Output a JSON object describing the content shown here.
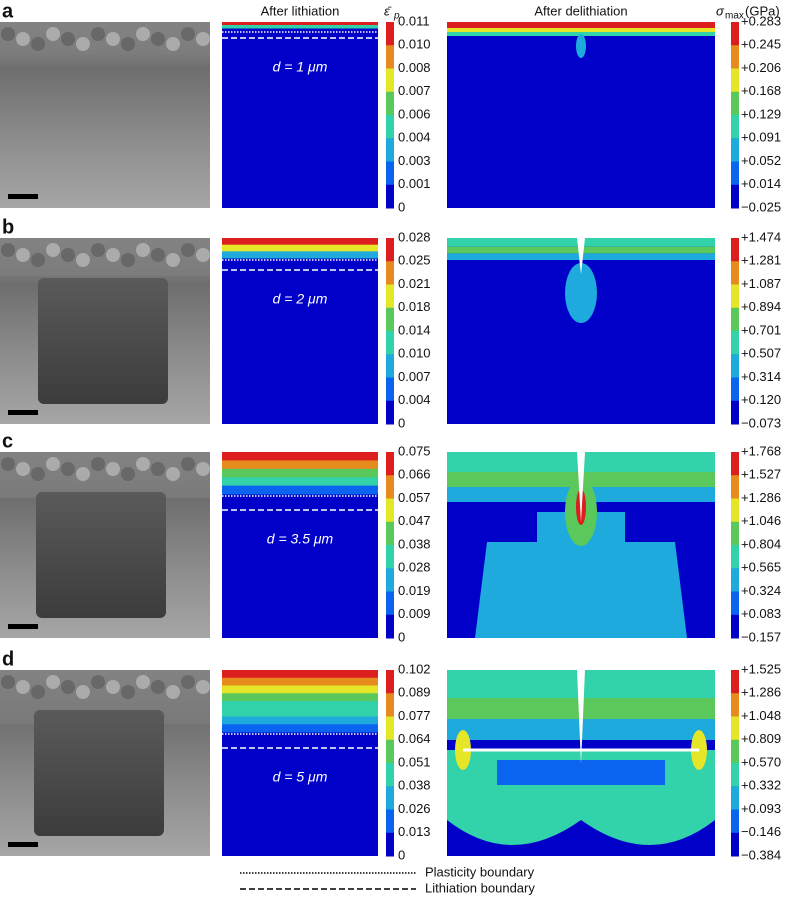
{
  "headers": {
    "lithiation": "After lithiation",
    "strain_symbol": "ε̄",
    "strain_subscript": "p",
    "delithiation": "After delithiation",
    "stress_symbol": "σ",
    "stress_subscript": "max",
    "stress_unit": "(GPa)"
  },
  "panels": [
    {
      "label": "a",
      "depth": "d = 1 μm",
      "strain_ticks": [
        "0.011",
        "0.010",
        "0.008",
        "0.007",
        "0.006",
        "0.004",
        "0.003",
        "0.001",
        "0"
      ],
      "stress_ticks": [
        "+0.283",
        "+0.245",
        "+0.206",
        "+0.168",
        "+0.129",
        "+0.091",
        "+0.052",
        "+0.014",
        "−0.025"
      ]
    },
    {
      "label": "b",
      "depth": "d = 2 μm",
      "strain_ticks": [
        "0.028",
        "0.025",
        "0.021",
        "0.018",
        "0.014",
        "0.010",
        "0.007",
        "0.004",
        "0"
      ],
      "stress_ticks": [
        "+1.474",
        "+1.281",
        "+1.087",
        "+0.894",
        "+0.701",
        "+0.507",
        "+0.314",
        "+0.120",
        "−0.073"
      ]
    },
    {
      "label": "c",
      "depth": "d = 3.5 μm",
      "strain_ticks": [
        "0.075",
        "0.066",
        "0.057",
        "0.047",
        "0.038",
        "0.028",
        "0.019",
        "0.009",
        "0"
      ],
      "stress_ticks": [
        "+1.768",
        "+1.527",
        "+1.286",
        "+1.046",
        "+0.804",
        "+0.565",
        "+0.324",
        "+0.083",
        "−0.157"
      ]
    },
    {
      "label": "d",
      "depth": "d = 5 μm",
      "strain_ticks": [
        "0.102",
        "0.089",
        "0.077",
        "0.064",
        "0.051",
        "0.038",
        "0.026",
        "0.013",
        "0"
      ],
      "stress_ticks": [
        "+1.525",
        "+1.286",
        "+1.048",
        "+0.809",
        "+0.570",
        "+0.332",
        "+0.093",
        "−0.146",
        "−0.384"
      ]
    }
  ],
  "legend": {
    "plasticity": "Plasticity boundary",
    "lithiation": "Lithiation boundary"
  }
}
